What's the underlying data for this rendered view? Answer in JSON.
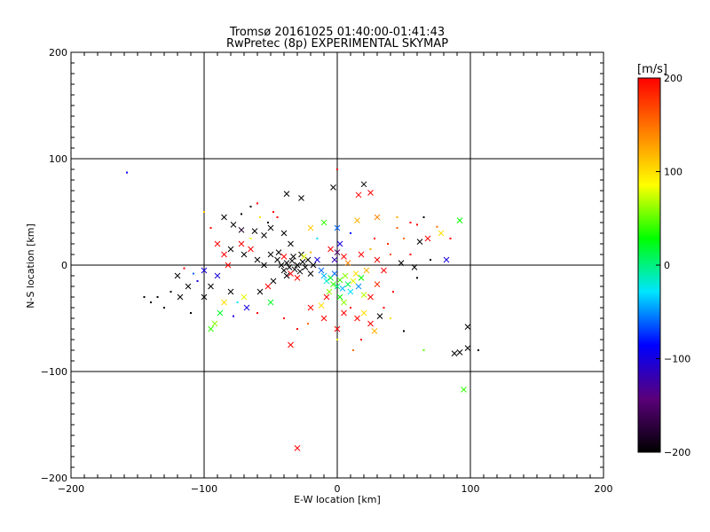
{
  "chart_data": {
    "type": "scatter",
    "title": "Tromsø 20161025 01:40:00-01:41:43",
    "subtitle": "RwPretec (8p) EXPERIMENTAL SKYMAP",
    "xlabel": "E-W location [km]",
    "ylabel": "N-S location [km]",
    "xlim": [
      -200,
      200
    ],
    "ylim": [
      -200,
      200
    ],
    "x_ticks": [
      -200,
      -100,
      0,
      100,
      200
    ],
    "y_ticks": [
      -200,
      -100,
      0,
      100,
      200
    ],
    "grid_lines_x": [
      -100,
      0,
      100
    ],
    "grid_lines_y": [
      -100,
      0,
      100
    ],
    "colorbar": {
      "label": "[m/s]",
      "range": [
        -200,
        200
      ],
      "ticks": [
        -200,
        -100,
        0,
        100,
        200
      ],
      "colors": [
        "#000000",
        "#5a007a",
        "#0000ff",
        "#00e5ff",
        "#00ff00",
        "#ffff00",
        "#ff7f00",
        "#ff0000"
      ]
    },
    "points": [
      {
        "x": -158,
        "y": 87,
        "v": -90,
        "s": "dot"
      },
      {
        "x": -100,
        "y": 50,
        "v": 110,
        "s": "dot"
      },
      {
        "x": -72,
        "y": 33,
        "v": -180,
        "s": "x"
      },
      {
        "x": -85,
        "y": 45,
        "v": -200,
        "s": "x"
      },
      {
        "x": -78,
        "y": 38,
        "v": -200,
        "s": "x"
      },
      {
        "x": -62,
        "y": 32,
        "v": -200,
        "s": "x"
      },
      {
        "x": -55,
        "y": 28,
        "v": -200,
        "s": "x"
      },
      {
        "x": -50,
        "y": 35,
        "v": -200,
        "s": "x"
      },
      {
        "x": -40,
        "y": 30,
        "v": -200,
        "s": "x"
      },
      {
        "x": -35,
        "y": 20,
        "v": -200,
        "s": "x"
      },
      {
        "x": -38,
        "y": 67,
        "v": -200,
        "s": "x"
      },
      {
        "x": -27,
        "y": 63,
        "v": -200,
        "s": "x"
      },
      {
        "x": -3,
        "y": 73,
        "v": -200,
        "s": "x"
      },
      {
        "x": 20,
        "y": 76,
        "v": -200,
        "s": "x"
      },
      {
        "x": 0,
        "y": 90,
        "v": 200,
        "s": "dot"
      },
      {
        "x": 16,
        "y": 66,
        "v": 200,
        "s": "x"
      },
      {
        "x": 25,
        "y": 68,
        "v": 200,
        "s": "x"
      },
      {
        "x": -60,
        "y": 58,
        "v": 200,
        "s": "dot"
      },
      {
        "x": -45,
        "y": 45,
        "v": 200,
        "s": "dot"
      },
      {
        "x": 15,
        "y": 42,
        "v": 120,
        "s": "x"
      },
      {
        "x": 30,
        "y": 45,
        "v": 140,
        "s": "x"
      },
      {
        "x": 45,
        "y": 35,
        "v": 160,
        "s": "dot"
      },
      {
        "x": 60,
        "y": 38,
        "v": 200,
        "s": "dot"
      },
      {
        "x": 75,
        "y": 36,
        "v": 150,
        "s": "dot"
      },
      {
        "x": 78,
        "y": 30,
        "v": 100,
        "s": "x"
      },
      {
        "x": 92,
        "y": 42,
        "v": 30,
        "s": "x"
      },
      {
        "x": 68,
        "y": 25,
        "v": 200,
        "s": "x"
      },
      {
        "x": 62,
        "y": 22,
        "v": -200,
        "s": "x"
      },
      {
        "x": 55,
        "y": 10,
        "v": 200,
        "s": "dot"
      },
      {
        "x": 48,
        "y": 2,
        "v": -200,
        "s": "x"
      },
      {
        "x": 70,
        "y": 5,
        "v": -200,
        "s": "dot"
      },
      {
        "x": 82,
        "y": 5,
        "v": -100,
        "s": "x"
      },
      {
        "x": 58,
        "y": -2,
        "v": -200,
        "s": "x"
      },
      {
        "x": 60,
        "y": -12,
        "v": -200,
        "s": "dot"
      },
      {
        "x": 40,
        "y": 10,
        "v": 160,
        "s": "dot"
      },
      {
        "x": 35,
        "y": -5,
        "v": 200,
        "s": "x"
      },
      {
        "x": 30,
        "y": -18,
        "v": 180,
        "s": "x"
      },
      {
        "x": 25,
        "y": -30,
        "v": 200,
        "s": "x"
      },
      {
        "x": 20,
        "y": -45,
        "v": 100,
        "s": "x"
      },
      {
        "x": 15,
        "y": -50,
        "v": 200,
        "s": "x"
      },
      {
        "x": 25,
        "y": -55,
        "v": 200,
        "s": "x"
      },
      {
        "x": 32,
        "y": -48,
        "v": -200,
        "s": "x"
      },
      {
        "x": 28,
        "y": -62,
        "v": 120,
        "s": "x"
      },
      {
        "x": 5,
        "y": -45,
        "v": 200,
        "s": "x"
      },
      {
        "x": 0,
        "y": -60,
        "v": 200,
        "s": "x"
      },
      {
        "x": -10,
        "y": -50,
        "v": 200,
        "s": "x"
      },
      {
        "x": -20,
        "y": -40,
        "v": 200,
        "s": "x"
      },
      {
        "x": -30,
        "y": -60,
        "v": 200,
        "s": "dot"
      },
      {
        "x": -35,
        "y": -75,
        "v": 200,
        "s": "x"
      },
      {
        "x": -30,
        "y": -172,
        "v": 200,
        "s": "x"
      },
      {
        "x": 12,
        "y": -80,
        "v": 150,
        "s": "dot"
      },
      {
        "x": 50,
        "y": -62,
        "v": -200,
        "s": "dot"
      },
      {
        "x": 65,
        "y": -80,
        "v": 50,
        "s": "dot"
      },
      {
        "x": 88,
        "y": -83,
        "v": -200,
        "s": "x"
      },
      {
        "x": 92,
        "y": -82,
        "v": -200,
        "s": "x"
      },
      {
        "x": 98,
        "y": -78,
        "v": -200,
        "s": "x"
      },
      {
        "x": 98,
        "y": -58,
        "v": -200,
        "s": "x"
      },
      {
        "x": 106,
        "y": -80,
        "v": -200,
        "s": "dot"
      },
      {
        "x": 95,
        "y": -117,
        "v": 40,
        "s": "x"
      },
      {
        "x": -120,
        "y": -10,
        "v": -200,
        "s": "x"
      },
      {
        "x": -125,
        "y": -25,
        "v": -200,
        "s": "dot"
      },
      {
        "x": -135,
        "y": -30,
        "v": -200,
        "s": "dot"
      },
      {
        "x": -140,
        "y": -35,
        "v": -200,
        "s": "dot"
      },
      {
        "x": -130,
        "y": -40,
        "v": -200,
        "s": "dot"
      },
      {
        "x": -118,
        "y": -30,
        "v": -200,
        "s": "x"
      },
      {
        "x": -112,
        "y": -20,
        "v": -200,
        "s": "x"
      },
      {
        "x": -105,
        "y": -15,
        "v": -100,
        "s": "dot"
      },
      {
        "x": -100,
        "y": -30,
        "v": -200,
        "s": "x"
      },
      {
        "x": -95,
        "y": -20,
        "v": -200,
        "s": "x"
      },
      {
        "x": -100,
        "y": -5,
        "v": -100,
        "s": "x"
      },
      {
        "x": -90,
        "y": -10,
        "v": -100,
        "s": "x"
      },
      {
        "x": -95,
        "y": -60,
        "v": 40,
        "s": "x"
      },
      {
        "x": -92,
        "y": -55,
        "v": 60,
        "s": "x"
      },
      {
        "x": -85,
        "y": -35,
        "v": 100,
        "s": "x"
      },
      {
        "x": -80,
        "y": -25,
        "v": -200,
        "s": "x"
      },
      {
        "x": -75,
        "y": -35,
        "v": -30,
        "s": "dot"
      },
      {
        "x": -70,
        "y": -30,
        "v": 80,
        "s": "x"
      },
      {
        "x": -68,
        "y": -40,
        "v": -100,
        "s": "x"
      },
      {
        "x": -60,
        "y": -45,
        "v": 200,
        "s": "dot"
      },
      {
        "x": -58,
        "y": -25,
        "v": -200,
        "s": "x"
      },
      {
        "x": -52,
        "y": -20,
        "v": 200,
        "s": "x"
      },
      {
        "x": -50,
        "y": -35,
        "v": 20,
        "s": "x"
      },
      {
        "x": -48,
        "y": -15,
        "v": -200,
        "s": "x"
      },
      {
        "x": -82,
        "y": 0,
        "v": 200,
        "s": "x"
      },
      {
        "x": -85,
        "y": 10,
        "v": 200,
        "s": "x"
      },
      {
        "x": -80,
        "y": 15,
        "v": -200,
        "s": "x"
      },
      {
        "x": -70,
        "y": 10,
        "v": -200,
        "s": "x"
      },
      {
        "x": -72,
        "y": 20,
        "v": 200,
        "s": "x"
      },
      {
        "x": -65,
        "y": 15,
        "v": 200,
        "s": "x"
      },
      {
        "x": -60,
        "y": 5,
        "v": -200,
        "s": "x"
      },
      {
        "x": -55,
        "y": 0,
        "v": -200,
        "s": "x"
      },
      {
        "x": -50,
        "y": 10,
        "v": -200,
        "s": "x"
      },
      {
        "x": -45,
        "y": 5,
        "v": -200,
        "s": "x"
      },
      {
        "x": -42,
        "y": 0,
        "v": -200,
        "s": "x"
      },
      {
        "x": -40,
        "y": -5,
        "v": -200,
        "s": "x"
      },
      {
        "x": -38,
        "y": 2,
        "v": -200,
        "s": "x"
      },
      {
        "x": -36,
        "y": -2,
        "v": -200,
        "s": "x"
      },
      {
        "x": -34,
        "y": 4,
        "v": -200,
        "s": "x"
      },
      {
        "x": -32,
        "y": -4,
        "v": -200,
        "s": "x"
      },
      {
        "x": -30,
        "y": 0,
        "v": -200,
        "s": "x"
      },
      {
        "x": -28,
        "y": -6,
        "v": -200,
        "s": "x"
      },
      {
        "x": -26,
        "y": 3,
        "v": -200,
        "s": "x"
      },
      {
        "x": -24,
        "y": -2,
        "v": -200,
        "s": "x"
      },
      {
        "x": -22,
        "y": 5,
        "v": -200,
        "s": "x"
      },
      {
        "x": -20,
        "y": -8,
        "v": -200,
        "s": "x"
      },
      {
        "x": -18,
        "y": 0,
        "v": -200,
        "s": "x"
      },
      {
        "x": -38,
        "y": -10,
        "v": -200,
        "s": "x"
      },
      {
        "x": -33,
        "y": 8,
        "v": -200,
        "s": "x"
      },
      {
        "x": -27,
        "y": 10,
        "v": -200,
        "s": "x"
      },
      {
        "x": -44,
        "y": 12,
        "v": -200,
        "s": "x"
      },
      {
        "x": -30,
        "y": -12,
        "v": 200,
        "s": "x"
      },
      {
        "x": -35,
        "y": -8,
        "v": 200,
        "s": "x"
      },
      {
        "x": -40,
        "y": 8,
        "v": 200,
        "s": "x"
      },
      {
        "x": -25,
        "y": 8,
        "v": 80,
        "s": "x"
      },
      {
        "x": -20,
        "y": 12,
        "v": 120,
        "s": "dot"
      },
      {
        "x": -15,
        "y": 5,
        "v": -100,
        "s": "x"
      },
      {
        "x": -12,
        "y": -5,
        "v": -60,
        "s": "x"
      },
      {
        "x": -10,
        "y": -10,
        "v": -40,
        "s": "x"
      },
      {
        "x": -8,
        "y": -15,
        "v": -20,
        "s": "x"
      },
      {
        "x": -5,
        "y": -12,
        "v": 20,
        "s": "x"
      },
      {
        "x": -3,
        "y": -18,
        "v": 40,
        "s": "x"
      },
      {
        "x": -2,
        "y": -8,
        "v": -60,
        "s": "x"
      },
      {
        "x": 0,
        "y": -20,
        "v": 0,
        "s": "x"
      },
      {
        "x": 2,
        "y": -14,
        "v": 40,
        "s": "x"
      },
      {
        "x": 4,
        "y": -22,
        "v": -40,
        "s": "x"
      },
      {
        "x": 6,
        "y": -10,
        "v": 60,
        "s": "x"
      },
      {
        "x": 8,
        "y": -18,
        "v": 10,
        "s": "x"
      },
      {
        "x": 10,
        "y": -25,
        "v": -30,
        "s": "x"
      },
      {
        "x": 12,
        "y": -15,
        "v": 80,
        "s": "x"
      },
      {
        "x": 14,
        "y": -8,
        "v": 100,
        "s": "x"
      },
      {
        "x": 16,
        "y": -20,
        "v": -50,
        "s": "x"
      },
      {
        "x": 18,
        "y": -12,
        "v": 30,
        "s": "x"
      },
      {
        "x": 20,
        "y": -28,
        "v": 70,
        "s": "x"
      },
      {
        "x": 22,
        "y": -5,
        "v": 120,
        "s": "x"
      },
      {
        "x": -6,
        "y": -25,
        "v": 60,
        "s": "x"
      },
      {
        "x": -8,
        "y": -30,
        "v": 200,
        "s": "x"
      },
      {
        "x": 2,
        "y": -30,
        "v": 30,
        "s": "x"
      },
      {
        "x": 5,
        "y": -35,
        "v": 60,
        "s": "x"
      },
      {
        "x": -2,
        "y": 5,
        "v": -120,
        "s": "x"
      },
      {
        "x": 0,
        "y": 12,
        "v": -150,
        "s": "x"
      },
      {
        "x": 2,
        "y": 20,
        "v": -100,
        "s": "x"
      },
      {
        "x": 5,
        "y": 8,
        "v": 200,
        "s": "x"
      },
      {
        "x": -5,
        "y": 15,
        "v": 200,
        "s": "x"
      },
      {
        "x": 8,
        "y": 2,
        "v": 140,
        "s": "x"
      },
      {
        "x": 10,
        "y": 30,
        "v": -80,
        "s": "dot"
      },
      {
        "x": -10,
        "y": 40,
        "v": 40,
        "s": "x"
      },
      {
        "x": -20,
        "y": 35,
        "v": 110,
        "s": "x"
      },
      {
        "x": 0,
        "y": 35,
        "v": -60,
        "s": "x"
      },
      {
        "x": -15,
        "y": 25,
        "v": -30,
        "s": "dot"
      },
      {
        "x": 28,
        "y": 25,
        "v": 200,
        "s": "dot"
      },
      {
        "x": 38,
        "y": 20,
        "v": 180,
        "s": "dot"
      },
      {
        "x": 50,
        "y": 25,
        "v": 150,
        "s": "dot"
      },
      {
        "x": 85,
        "y": 25,
        "v": 200,
        "s": "dot"
      },
      {
        "x": -110,
        "y": -45,
        "v": -200,
        "s": "dot"
      },
      {
        "x": -88,
        "y": -45,
        "v": 20,
        "s": "x"
      },
      {
        "x": -78,
        "y": -48,
        "v": -100,
        "s": "dot"
      },
      {
        "x": -65,
        "y": 25,
        "v": 80,
        "s": "dot"
      },
      {
        "x": -58,
        "y": 45,
        "v": 100,
        "s": "dot"
      },
      {
        "x": -72,
        "y": 48,
        "v": -200,
        "s": "dot"
      },
      {
        "x": -65,
        "y": 55,
        "v": -200,
        "s": "dot"
      },
      {
        "x": -52,
        "y": 40,
        "v": -200,
        "s": "dot"
      },
      {
        "x": -48,
        "y": 50,
        "v": 200,
        "s": "dot"
      },
      {
        "x": -95,
        "y": 35,
        "v": 200,
        "s": "dot"
      },
      {
        "x": -90,
        "y": 20,
        "v": 200,
        "s": "x"
      },
      {
        "x": -108,
        "y": -8,
        "v": -60,
        "s": "dot"
      },
      {
        "x": -115,
        "y": -3,
        "v": 200,
        "s": "dot"
      },
      {
        "x": -145,
        "y": -30,
        "v": -200,
        "s": "dot"
      },
      {
        "x": 55,
        "y": 40,
        "v": 200,
        "s": "dot"
      },
      {
        "x": 65,
        "y": 45,
        "v": -200,
        "s": "dot"
      },
      {
        "x": 45,
        "y": 45,
        "v": 120,
        "s": "dot"
      },
      {
        "x": 42,
        "y": -25,
        "v": 200,
        "s": "dot"
      },
      {
        "x": 35,
        "y": -40,
        "v": 200,
        "s": "dot"
      },
      {
        "x": 40,
        "y": -50,
        "v": 100,
        "s": "dot"
      },
      {
        "x": 18,
        "y": -70,
        "v": 200,
        "s": "dot"
      },
      {
        "x": 0,
        "y": -70,
        "v": 80,
        "s": "dot"
      },
      {
        "x": -40,
        "y": -50,
        "v": 200,
        "s": "dot"
      },
      {
        "x": -22,
        "y": -55,
        "v": 150,
        "s": "dot"
      },
      {
        "x": -12,
        "y": -38,
        "v": 100,
        "s": "x"
      },
      {
        "x": 10,
        "y": -40,
        "v": 200,
        "s": "dot"
      },
      {
        "x": 30,
        "y": 5,
        "v": 200,
        "s": "x"
      },
      {
        "x": 25,
        "y": 15,
        "v": 120,
        "s": "dot"
      },
      {
        "x": 18,
        "y": 10,
        "v": 200,
        "s": "x"
      }
    ]
  }
}
